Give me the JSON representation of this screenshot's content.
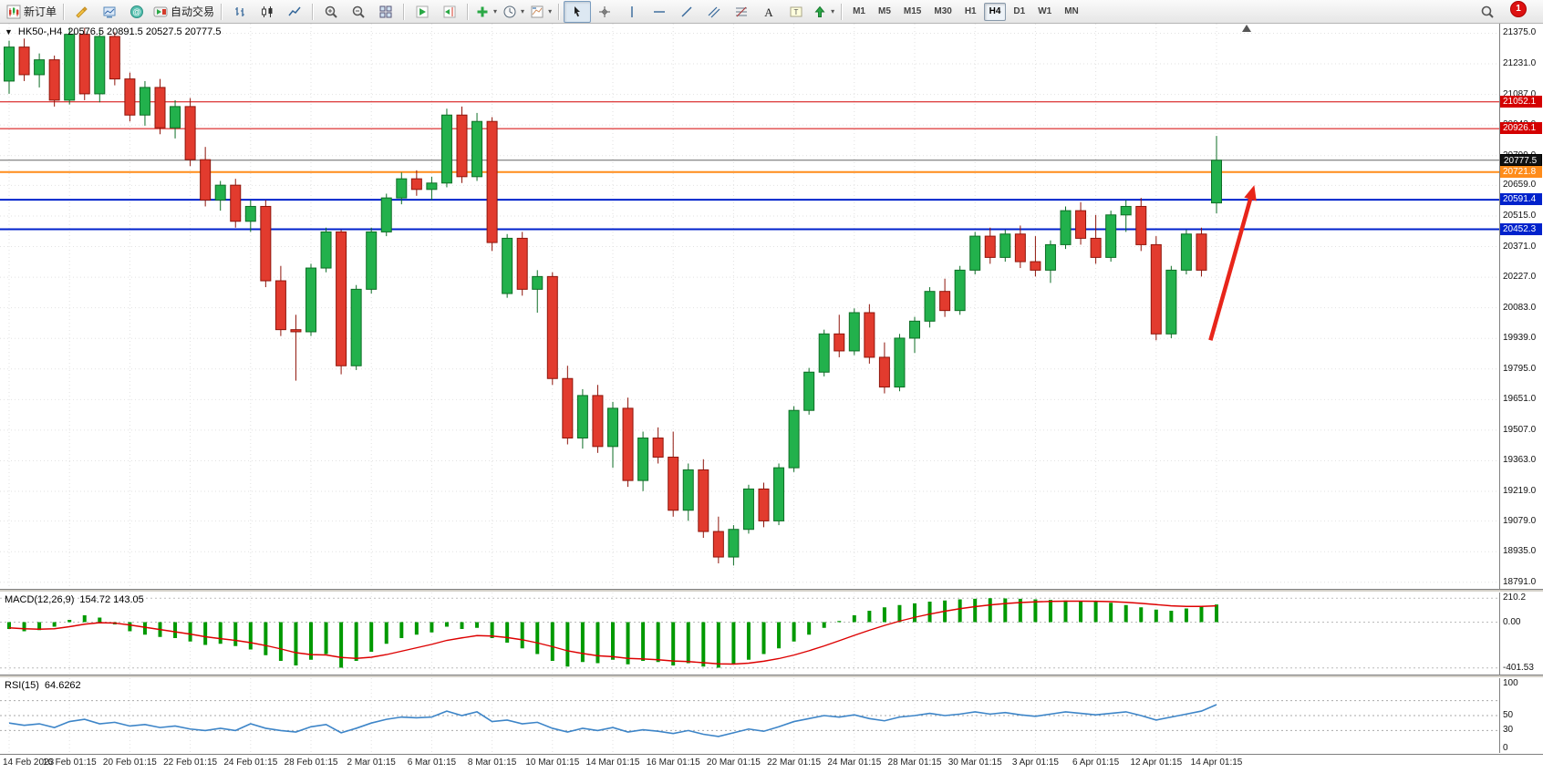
{
  "toolbar": {
    "caret_glyph": "▾",
    "notification_count": "1",
    "timeframes": [
      "M1",
      "M5",
      "M15",
      "M30",
      "H1",
      "H4",
      "D1",
      "W1",
      "MN"
    ],
    "active_timeframe": "H4",
    "groups": [
      {
        "items": [
          {
            "name": "new-order-button",
            "icon": "new-order-icon",
            "label": "新订单"
          }
        ]
      },
      {
        "items": [
          {
            "name": "editor-button",
            "icon": "editor-icon"
          },
          {
            "name": "profiles-button",
            "icon": "profiles-icon"
          },
          {
            "name": "community-button",
            "icon": "community-icon"
          },
          {
            "name": "autotrading-button",
            "icon": "autotrading-icon",
            "label": "自动交易"
          }
        ]
      },
      {
        "items": [
          {
            "name": "bar-chart-button",
            "icon": "bar-chart-icon"
          },
          {
            "name": "candlestick-button",
            "icon": "candlestick-icon"
          },
          {
            "name": "line-chart-button",
            "icon": "line-chart-icon"
          }
        ]
      },
      {
        "items": [
          {
            "name": "zoom-in-button",
            "icon": "zoom-in-icon"
          },
          {
            "name": "zoom-out-button",
            "icon": "zoom-out-icon"
          },
          {
            "name": "tile-windows-button",
            "icon": "tile-windows-icon"
          }
        ]
      },
      {
        "items": [
          {
            "name": "auto-scroll-button",
            "icon": "auto-scroll-icon"
          },
          {
            "name": "chart-shift-button",
            "icon": "chart-shift-icon"
          }
        ]
      },
      {
        "items": [
          {
            "name": "indicators-button",
            "icon": "indicators-icon",
            "caret": true
          },
          {
            "name": "periods-button",
            "icon": "periods-icon",
            "caret": true
          },
          {
            "name": "templates-button",
            "icon": "templates-icon",
            "caret": true
          }
        ]
      },
      {
        "items": [
          {
            "name": "cursor-button",
            "icon": "cursor-icon",
            "pressed": true
          },
          {
            "name": "crosshair-button",
            "icon": "crosshair-icon"
          },
          {
            "name": "vertical-line-button",
            "icon": "vline-icon"
          },
          {
            "name": "horizontal-line-button",
            "icon": "hline-icon"
          },
          {
            "name": "trendline-button",
            "icon": "trendline-icon"
          },
          {
            "name": "channel-button",
            "icon": "channel-icon"
          },
          {
            "name": "fibonacci-button",
            "icon": "fibonacci-icon"
          },
          {
            "name": "text-button",
            "icon": "text-icon"
          },
          {
            "name": "text-label-button",
            "icon": "label-icon"
          },
          {
            "name": "arrows-button",
            "icon": "arrows-icon",
            "caret": true
          }
        ]
      }
    ]
  },
  "chart": {
    "one_click_arrow": "▼",
    "symbol": "HK50-,H4",
    "ohlc": "20576.5 20891.5 20527.5 20777.5",
    "macd_label": "MACD(12,26,9)",
    "macd_values": "154.72 143.05",
    "rsi_label": "RSI(15)",
    "rsi_value": "64.6262",
    "chart_data": [
      {
        "type": "candlestick",
        "title": "HK50-,H4",
        "ylim": [
          18760,
          21420
        ],
        "y_ticks": [
          21375.0,
          21231.0,
          21087.0,
          20943.0,
          20799.0,
          20659.0,
          20515.0,
          20371.0,
          20227.0,
          20083.0,
          19939.0,
          19795.0,
          19651.0,
          19507.0,
          19363.0,
          19219.0,
          19079.0,
          18935.0,
          18791.0
        ],
        "x_labels": [
          "14 Feb 2023",
          "16 Feb 01:15",
          "20 Feb 01:15",
          "22 Feb 01:15",
          "24 Feb 01:15",
          "28 Feb 01:15",
          "2 Mar 01:15",
          "6 Mar 01:15",
          "8 Mar 01:15",
          "10 Mar 01:15",
          "14 Mar 01:15",
          "16 Mar 01:15",
          "20 Mar 01:15",
          "22 Mar 01:15",
          "24 Mar 01:15",
          "28 Mar 01:15",
          "30 Mar 01:15",
          "3 Apr 01:15",
          "6 Apr 01:15",
          "12 Apr 01:15",
          "14 Apr 01:15"
        ],
        "label_every_n_candles": 4,
        "up_color": "#22b14c",
        "down_color": "#e23b2e",
        "candles": [
          [
            21150,
            21340,
            21090,
            21310
          ],
          [
            21310,
            21350,
            21150,
            21180
          ],
          [
            21180,
            21280,
            21120,
            21250
          ],
          [
            21250,
            21270,
            21030,
            21060
          ],
          [
            21060,
            21400,
            21040,
            21370
          ],
          [
            21370,
            21400,
            21060,
            21090
          ],
          [
            21090,
            21390,
            21050,
            21360
          ],
          [
            21360,
            21380,
            21130,
            21160
          ],
          [
            21160,
            21190,
            20960,
            20990
          ],
          [
            20990,
            21150,
            20940,
            21120
          ],
          [
            21120,
            21160,
            20900,
            20930
          ],
          [
            20930,
            21060,
            20880,
            21030
          ],
          [
            21030,
            21070,
            20750,
            20780
          ],
          [
            20780,
            20840,
            20560,
            20590
          ],
          [
            20590,
            20680,
            20540,
            20660
          ],
          [
            20660,
            20690,
            20460,
            20490
          ],
          [
            20490,
            20590,
            20440,
            20560
          ],
          [
            20560,
            20590,
            20180,
            20210
          ],
          [
            20210,
            20280,
            19950,
            19980
          ],
          [
            19980,
            20050,
            19740,
            19970
          ],
          [
            19970,
            20290,
            19950,
            20270
          ],
          [
            20270,
            20460,
            20250,
            20440
          ],
          [
            20440,
            20450,
            19770,
            19810
          ],
          [
            19810,
            20190,
            19790,
            20170
          ],
          [
            20170,
            20460,
            20150,
            20440
          ],
          [
            20440,
            20620,
            20420,
            20600
          ],
          [
            20600,
            20720,
            20570,
            20690
          ],
          [
            20690,
            20730,
            20610,
            20640
          ],
          [
            20640,
            20700,
            20590,
            20670
          ],
          [
            20670,
            21020,
            20650,
            20990
          ],
          [
            20990,
            21030,
            20670,
            20700
          ],
          [
            20700,
            21000,
            20680,
            20960
          ],
          [
            20960,
            20980,
            20350,
            20390
          ],
          [
            20150,
            20430,
            20130,
            20410
          ],
          [
            20410,
            20440,
            20140,
            20170
          ],
          [
            20170,
            20260,
            20060,
            20230
          ],
          [
            20230,
            20250,
            19720,
            19750
          ],
          [
            19750,
            19810,
            19440,
            19470
          ],
          [
            19470,
            19700,
            19420,
            19670
          ],
          [
            19670,
            19720,
            19400,
            19430
          ],
          [
            19430,
            19640,
            19330,
            19610
          ],
          [
            19610,
            19660,
            19240,
            19270
          ],
          [
            19270,
            19500,
            19220,
            19470
          ],
          [
            19470,
            19520,
            19350,
            19380
          ],
          [
            19380,
            19500,
            19100,
            19130
          ],
          [
            19130,
            19350,
            19080,
            19320
          ],
          [
            19320,
            19370,
            19000,
            19030
          ],
          [
            19030,
            19100,
            18880,
            18910
          ],
          [
            18910,
            19060,
            18870,
            19040
          ],
          [
            19040,
            19250,
            19020,
            19230
          ],
          [
            19230,
            19260,
            19050,
            19080
          ],
          [
            19080,
            19350,
            19060,
            19330
          ],
          [
            19330,
            19620,
            19310,
            19600
          ],
          [
            19600,
            19800,
            19580,
            19780
          ],
          [
            19780,
            19980,
            19760,
            19960
          ],
          [
            19960,
            20050,
            19850,
            19880
          ],
          [
            19880,
            20080,
            19860,
            20060
          ],
          [
            20060,
            20100,
            19820,
            19850
          ],
          [
            19850,
            19920,
            19680,
            19710
          ],
          [
            19710,
            19960,
            19690,
            19940
          ],
          [
            19940,
            20040,
            19870,
            20020
          ],
          [
            20020,
            20180,
            19990,
            20160
          ],
          [
            20160,
            20220,
            20040,
            20070
          ],
          [
            20070,
            20280,
            20050,
            20260
          ],
          [
            20260,
            20440,
            20240,
            20420
          ],
          [
            20420,
            20460,
            20290,
            20320
          ],
          [
            20320,
            20450,
            20300,
            20430
          ],
          [
            20430,
            20470,
            20270,
            20300
          ],
          [
            20300,
            20420,
            20230,
            20260
          ],
          [
            20260,
            20400,
            20200,
            20380
          ],
          [
            20380,
            20560,
            20360,
            20540
          ],
          [
            20540,
            20580,
            20380,
            20410
          ],
          [
            20410,
            20520,
            20290,
            20320
          ],
          [
            20320,
            20540,
            20300,
            20520
          ],
          [
            20520,
            20590,
            20440,
            20560
          ],
          [
            20560,
            20600,
            20350,
            20380
          ],
          [
            20380,
            20420,
            19930,
            19960
          ],
          [
            19960,
            20280,
            19940,
            20260
          ],
          [
            20260,
            20450,
            20240,
            20430
          ],
          [
            20430,
            20460,
            20230,
            20260
          ],
          [
            20576.5,
            20891.5,
            20527.5,
            20777.5
          ]
        ],
        "hlines": [
          {
            "price": 21052.1,
            "label": "21052.1",
            "color": "#d40000",
            "tag": "red",
            "width": 1
          },
          {
            "price": 20926.1,
            "label": "20926.1",
            "color": "#d40000",
            "tag": "red",
            "width": 1
          },
          {
            "price": 20777.5,
            "label": "20777.5",
            "color": "#666666",
            "tag": "current",
            "width": 1
          },
          {
            "price": 20721.8,
            "label": "20721.8",
            "color": "#ff8c1a",
            "tag": "orange",
            "width": 2
          },
          {
            "price": 20591.4,
            "label": "20591.4",
            "color": "#0022cc",
            "tag": "blue",
            "width": 2
          },
          {
            "price": 20452.3,
            "label": "20452.3",
            "color": "#0022cc",
            "tag": "blue",
            "width": 2
          }
        ],
        "annotation_arrow": {
          "from_candle": 79.6,
          "from_price": 19930,
          "to_candle": 82.5,
          "to_price": 20660,
          "color": "#e8251a"
        },
        "shift_marker_candle": 82
      },
      {
        "type": "bar",
        "name": "MACD(12,26,9)",
        "ylim": [
          -460,
          260
        ],
        "y_ticks": [
          210.2,
          0,
          -401.53
        ],
        "y_tick_labels": [
          "210.2",
          "0.00",
          "-401.53"
        ],
        "bar_color": "#009900",
        "signal_color": "#dd0000",
        "values": [
          -60,
          -80,
          -70,
          -40,
          20,
          60,
          40,
          -20,
          -80,
          -110,
          -130,
          -140,
          -170,
          -200,
          -190,
          -210,
          -240,
          -290,
          -340,
          -380,
          -330,
          -280,
          -400,
          -340,
          -260,
          -190,
          -140,
          -110,
          -90,
          -40,
          -60,
          -50,
          -140,
          -180,
          -230,
          -280,
          -340,
          -390,
          -350,
          -360,
          -330,
          -370,
          -340,
          -350,
          -380,
          -360,
          -390,
          -400,
          -370,
          -330,
          -280,
          -230,
          -170,
          -110,
          -50,
          10,
          60,
          100,
          130,
          150,
          165,
          180,
          190,
          200,
          205,
          210,
          208,
          205,
          200,
          195,
          190,
          185,
          180,
          170,
          150,
          130,
          110,
          100,
          120,
          140,
          154.72
        ],
        "signal_line": [
          -50,
          -58,
          -62,
          -58,
          -40,
          -18,
          -5,
          -8,
          -25,
          -45,
          -65,
          -85,
          -105,
          -128,
          -145,
          -160,
          -180,
          -205,
          -235,
          -268,
          -285,
          -288,
          -310,
          -318,
          -308,
          -285,
          -255,
          -225,
          -195,
          -160,
          -138,
          -118,
          -122,
          -135,
          -155,
          -182,
          -215,
          -252,
          -275,
          -295,
          -303,
          -318,
          -323,
          -330,
          -341,
          -346,
          -356,
          -366,
          -368,
          -360,
          -343,
          -320,
          -289,
          -251,
          -209,
          -163,
          -116,
          -71,
          -29,
          9,
          42,
          71,
          96,
          118,
          136,
          151,
          163,
          172,
          178,
          182,
          184,
          184,
          183,
          180,
          174,
          165,
          154,
          143,
          138,
          138,
          143.05
        ]
      },
      {
        "type": "line",
        "name": "RSI(15)",
        "ylim": [
          0,
          100
        ],
        "y_ticks": [
          100,
          50,
          30,
          0
        ],
        "y_tick_labels": [
          "100",
          "50",
          "30",
          "0"
        ],
        "levels": [
          70,
          50,
          30
        ],
        "line_color": "#3d85c8",
        "values": [
          40,
          37,
          39,
          34,
          42,
          45,
          39,
          41,
          36,
          38,
          34,
          36,
          32,
          30,
          33,
          30,
          39,
          33,
          30,
          28,
          35,
          38,
          27,
          33,
          40,
          45,
          48,
          47,
          48,
          56,
          50,
          55,
          42,
          44,
          39,
          41,
          33,
          28,
          33,
          30,
          34,
          28,
          31,
          29,
          26,
          30,
          25,
          22,
          27,
          32,
          29,
          35,
          42,
          46,
          50,
          48,
          51,
          46,
          43,
          48,
          50,
          53,
          50,
          52,
          55,
          52,
          54,
          51,
          49,
          52,
          55,
          53,
          51,
          53,
          55,
          50,
          44,
          48,
          52,
          56,
          64.63
        ]
      }
    ]
  }
}
